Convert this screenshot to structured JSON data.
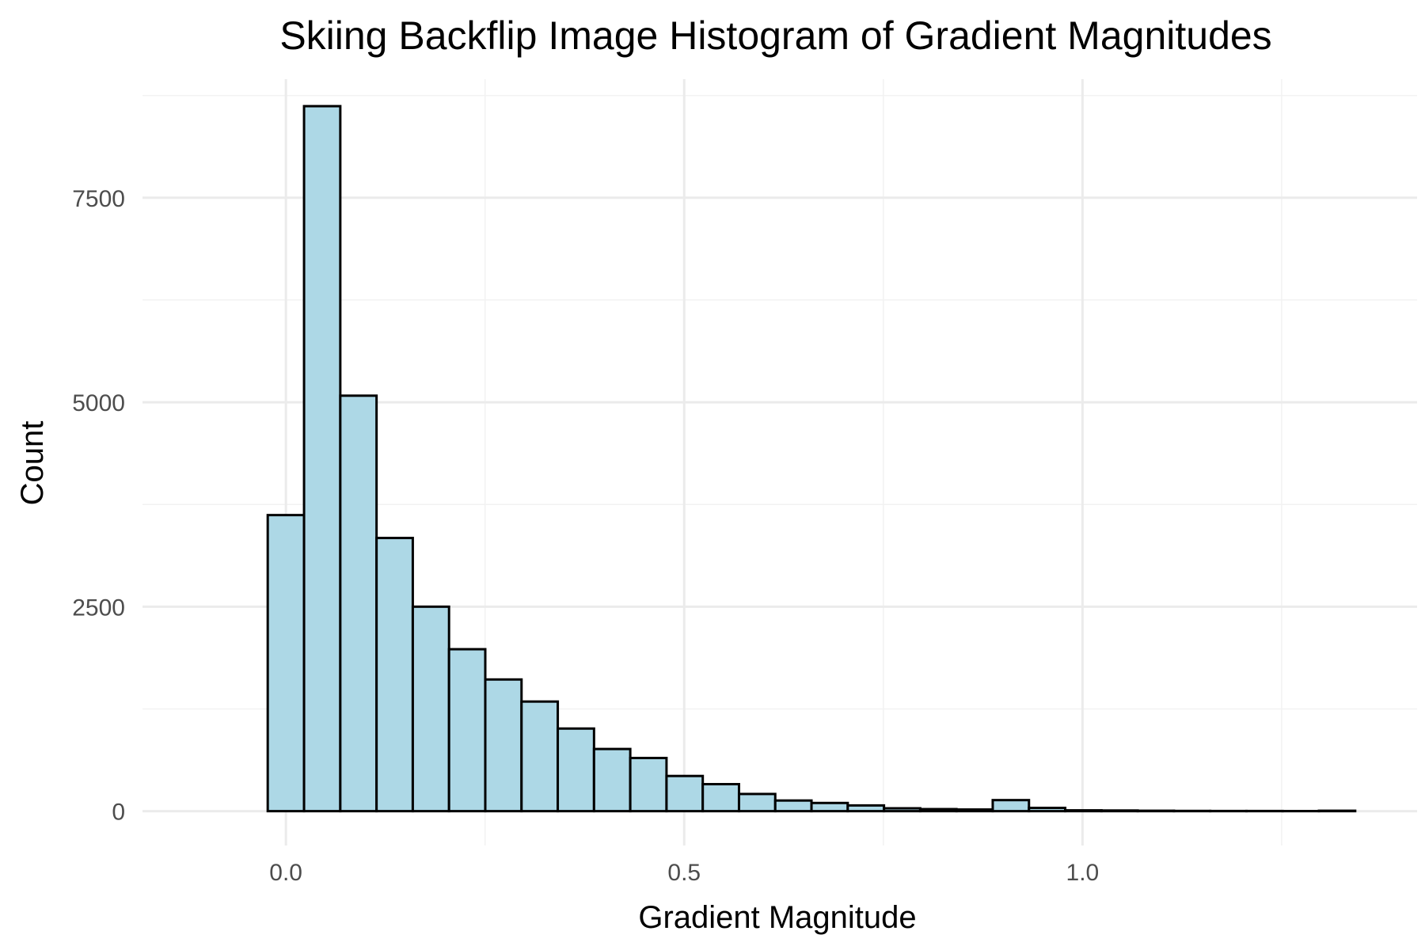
{
  "chart_data": {
    "type": "bar",
    "title": "Skiing Backflip Image Histogram of Gradient Magnitudes",
    "xlabel": "Gradient Magnitude",
    "ylabel": "Count",
    "xlim": [
      -0.18,
      1.42
    ],
    "ylim": [
      -420,
      8950
    ],
    "x_ticks": [
      0.0,
      0.5,
      1.0
    ],
    "x_tick_labels": [
      "0.0",
      "0.5",
      "1.0"
    ],
    "y_ticks": [
      0,
      2500,
      5000,
      7500
    ],
    "y_tick_labels": [
      "0",
      "2500",
      "5000",
      "7500"
    ],
    "x_minor_grid": [
      0.25,
      0.75,
      1.25
    ],
    "y_minor_grid": [
      1250,
      3750,
      6250,
      8750
    ],
    "grid": true,
    "bin_width": 0.0455,
    "bins": [
      {
        "x0": -0.0228,
        "x1": 0.0228,
        "count": 3620
      },
      {
        "x0": 0.0228,
        "x1": 0.0683,
        "count": 8620
      },
      {
        "x0": 0.0683,
        "x1": 0.1138,
        "count": 5080
      },
      {
        "x0": 0.1138,
        "x1": 0.1593,
        "count": 3340
      },
      {
        "x0": 0.1593,
        "x1": 0.2048,
        "count": 2500
      },
      {
        "x0": 0.2048,
        "x1": 0.2503,
        "count": 1980
      },
      {
        "x0": 0.2503,
        "x1": 0.2958,
        "count": 1610
      },
      {
        "x0": 0.2958,
        "x1": 0.3413,
        "count": 1340
      },
      {
        "x0": 0.3413,
        "x1": 0.3868,
        "count": 1010
      },
      {
        "x0": 0.3868,
        "x1": 0.4323,
        "count": 760
      },
      {
        "x0": 0.4323,
        "x1": 0.4778,
        "count": 650
      },
      {
        "x0": 0.4778,
        "x1": 0.5233,
        "count": 430
      },
      {
        "x0": 0.5233,
        "x1": 0.5688,
        "count": 330
      },
      {
        "x0": 0.5688,
        "x1": 0.6143,
        "count": 210
      },
      {
        "x0": 0.6143,
        "x1": 0.6598,
        "count": 130
      },
      {
        "x0": 0.6598,
        "x1": 0.7053,
        "count": 100
      },
      {
        "x0": 0.7053,
        "x1": 0.7508,
        "count": 70
      },
      {
        "x0": 0.7508,
        "x1": 0.7963,
        "count": 35
      },
      {
        "x0": 0.7963,
        "x1": 0.8418,
        "count": 25
      },
      {
        "x0": 0.8418,
        "x1": 0.8873,
        "count": 20
      },
      {
        "x0": 0.8873,
        "x1": 0.9328,
        "count": 135
      },
      {
        "x0": 0.9328,
        "x1": 0.9783,
        "count": 40
      },
      {
        "x0": 0.9783,
        "x1": 1.0238,
        "count": 10
      },
      {
        "x0": 1.0238,
        "x1": 1.0693,
        "count": 8
      },
      {
        "x0": 1.0693,
        "x1": 1.1148,
        "count": 5
      },
      {
        "x0": 1.1148,
        "x1": 1.1603,
        "count": 3
      },
      {
        "x0": 1.1603,
        "x1": 1.2058,
        "count": 2
      },
      {
        "x0": 1.2058,
        "x1": 1.2513,
        "count": 2
      },
      {
        "x0": 1.2513,
        "x1": 1.2968,
        "count": 1
      },
      {
        "x0": 1.2968,
        "x1": 1.3423,
        "count": 5
      }
    ],
    "colors": {
      "bar_fill": "#ADD8E6",
      "bar_stroke": "#000000",
      "grid_major": "#EBEBEB",
      "grid_minor": "#F2F2F2",
      "tick_text": "#4D4D4D",
      "text": "#000000"
    }
  }
}
